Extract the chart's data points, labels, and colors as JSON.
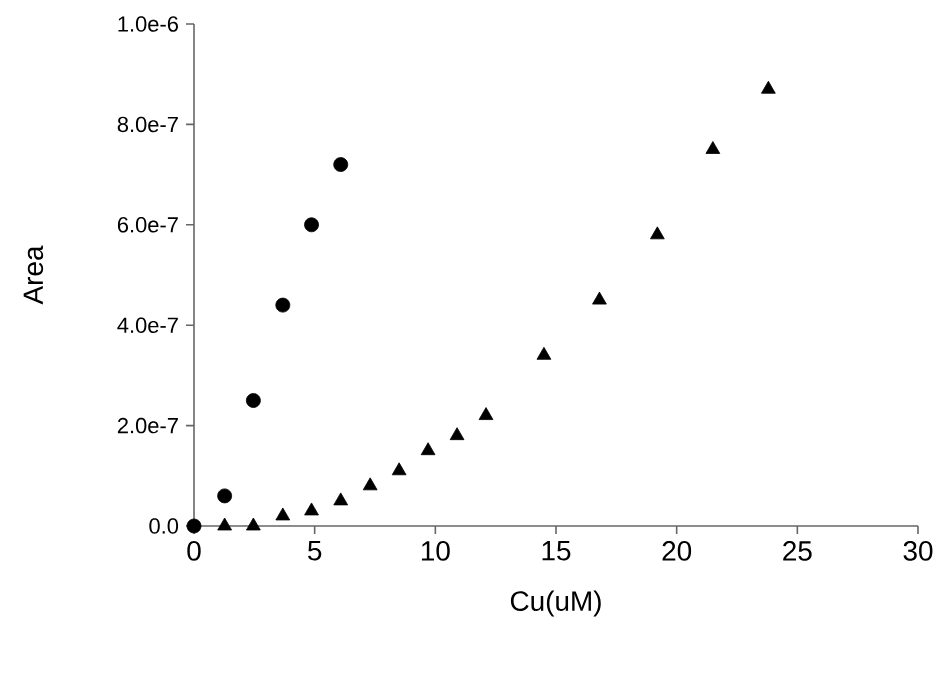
{
  "chart_data": {
    "type": "scatter",
    "xlabel": "Cu(uM)",
    "ylabel": "Area",
    "xlim": [
      0,
      30
    ],
    "xticks": [
      0,
      5,
      10,
      15,
      20,
      25,
      30
    ],
    "ylim": [
      0,
      1e-06
    ],
    "yticks": [
      {
        "value": 0,
        "label": "0.0"
      },
      {
        "value": 2e-07,
        "label": "2.0e-7"
      },
      {
        "value": 4e-07,
        "label": "4.0e-7"
      },
      {
        "value": 6e-07,
        "label": "6.0e-7"
      },
      {
        "value": 8e-07,
        "label": "8.0e-7"
      },
      {
        "value": 1e-06,
        "label": "1.0e-6"
      }
    ],
    "grid": false,
    "series": [
      {
        "color": "#000000",
        "marker": "circle",
        "x": [
          0,
          1.27,
          2.46,
          3.68,
          4.87,
          6.08
        ],
        "values": [
          0.0,
          6e-08,
          2.5e-07,
          4.4e-07,
          6e-07,
          7.2e-07
        ]
      },
      {
        "color": "#000000",
        "marker": "triangle",
        "x": [
          1.27,
          2.46,
          3.68,
          4.87,
          6.08,
          7.3,
          8.5,
          9.7,
          10.9,
          12.1,
          14.5,
          16.8,
          19.2,
          21.5,
          23.8
        ],
        "values": [
          0,
          0,
          2e-08,
          3e-08,
          5e-08,
          8e-08,
          1.1e-07,
          1.5e-07,
          1.8e-07,
          2.2e-07,
          3.4e-07,
          4.5e-07,
          5.8e-07,
          7.5e-07,
          8.7e-07
        ]
      }
    ]
  }
}
